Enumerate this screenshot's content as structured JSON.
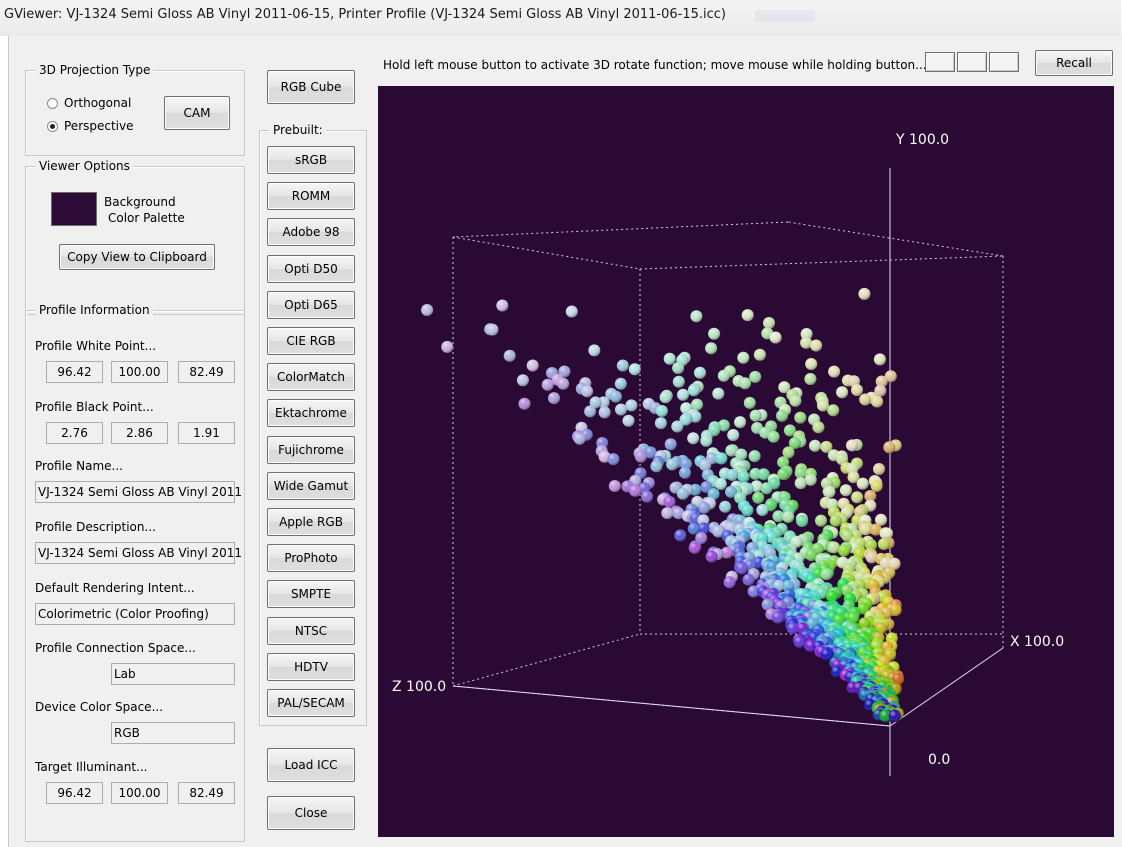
{
  "window": {
    "title": "GViewer: VJ-1324 Semi Gloss AB Vinyl 2011-06-15, Printer Profile (VJ-1324 Semi Gloss AB Vinyl 2011-06-15.icc)"
  },
  "projection": {
    "label": "3D Projection Type",
    "options": [
      "Orthogonal",
      "Perspective"
    ],
    "selected": "Perspective",
    "cam_button": "CAM"
  },
  "viewer_options": {
    "label": "Viewer Options",
    "background_label_1": "Background",
    "background_label_2": "Color Palette",
    "background_color": "#2a0a35",
    "copy_button": "Copy View to Clipboard"
  },
  "profile_info": {
    "label": "Profile Information",
    "white_point_label": "Profile White Point...",
    "white_point": [
      "96.42",
      "100.00",
      "82.49"
    ],
    "black_point_label": "Profile Black Point...",
    "black_point": [
      "2.76",
      "2.86",
      "1.91"
    ],
    "name_label": "Profile Name...",
    "name": "VJ-1324 Semi Gloss AB Vinyl 2011",
    "description_label": "Profile Description...",
    "description": "VJ-1324 Semi Gloss AB Vinyl 2011",
    "rendering_intent_label": "Default Rendering Intent...",
    "rendering_intent": "Colorimetric (Color Proofing)",
    "pcs_label": "Profile Connection Space...",
    "pcs": "Lab",
    "device_space_label": "Device Color Space...",
    "device_space": "RGB",
    "illuminant_label": "Target Illuminant...",
    "illuminant": [
      "96.42",
      "100.00",
      "82.49"
    ]
  },
  "middle": {
    "rgb_cube": "RGB Cube",
    "prebuilt_label": "Prebuilt:",
    "prebuilt": [
      "sRGB",
      "ROMM",
      "Adobe 98",
      "Opti D50",
      "Opti D65",
      "CIE RGB",
      "ColorMatch",
      "Ektachrome",
      "Fujichrome",
      "Wide Gamut",
      "Apple RGB",
      "ProPhoto",
      "SMPTE",
      "NTSC",
      "HDTV",
      "PAL/SECAM"
    ],
    "load_icc": "Load ICC",
    "close": "Close"
  },
  "viewer": {
    "instruction": "Hold left mouse button to activate 3D rotate function; move mouse while holding button...",
    "recall": "Recall",
    "y_label": "Y 100.0",
    "x_label": "X 100.0",
    "z_label": "Z 100.0",
    "origin_label": "0.0"
  }
}
